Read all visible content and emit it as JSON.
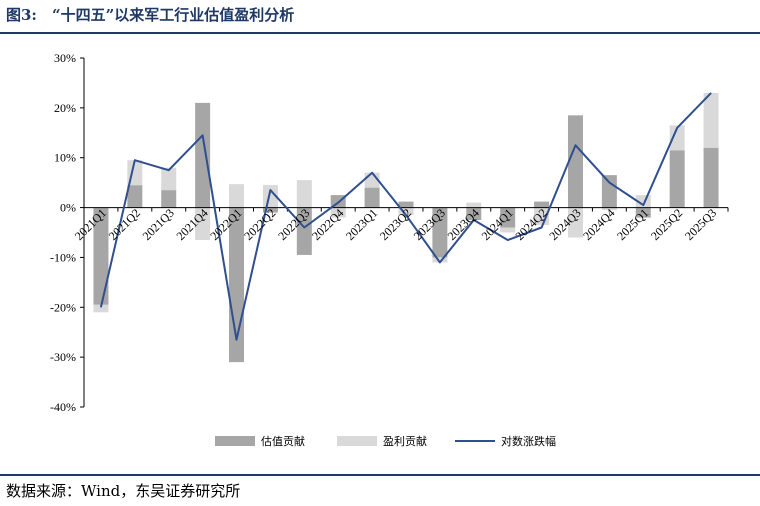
{
  "figure": {
    "title": "图3:　“十四五”以来军工行业估值盈利分析",
    "source": "数据来源：Wind，东吴证券研究所"
  },
  "chart_data": {
    "type": "bar",
    "categories": [
      "2021Q1",
      "2021Q2",
      "2021Q3",
      "2021Q4",
      "2022Q1",
      "2022Q2",
      "2022Q3",
      "2022Q4",
      "2023Q1",
      "2023Q2",
      "2023Q3",
      "2023Q4",
      "2024Q1",
      "2024Q2",
      "2024Q3",
      "2024Q4",
      "2025Q1",
      "2025Q2",
      "2025Q3"
    ],
    "series": [
      {
        "name": "估值贡献",
        "kind": "stacked-bar",
        "color": "#a6a6a6",
        "values": [
          -19.5,
          4.5,
          3.5,
          21,
          -31,
          -1,
          -9.5,
          2.5,
          4,
          1.2,
          -10,
          -2.5,
          -4,
          1.2,
          18.5,
          6.5,
          -2,
          11.5,
          12
        ]
      },
      {
        "name": "盈利贡献",
        "kind": "stacked-bar",
        "color": "#d9d9d9",
        "values": [
          -1.5,
          5,
          4.5,
          -6.5,
          4.7,
          4.5,
          5.5,
          -2,
          3,
          -1.5,
          -1,
          1,
          -1,
          -3.5,
          -6,
          -0.5,
          2.5,
          5,
          11
        ]
      },
      {
        "name": "对数涨跌幅",
        "kind": "line",
        "color": "#2f4f8f",
        "values": [
          -20,
          9.5,
          7.5,
          14.5,
          -26.5,
          3.5,
          -4,
          1,
          7,
          -1.5,
          -11,
          -2.5,
          -6.5,
          -4,
          12.5,
          5,
          0.5,
          16,
          23
        ]
      }
    ],
    "yticks": [
      "30%",
      "20%",
      "10%",
      "0%",
      "-10%",
      "-20%",
      "-30%",
      "-40%"
    ],
    "ylim": [
      -40,
      30
    ],
    "ytick_step": 10,
    "legend_position": "bottom",
    "grid": false
  }
}
